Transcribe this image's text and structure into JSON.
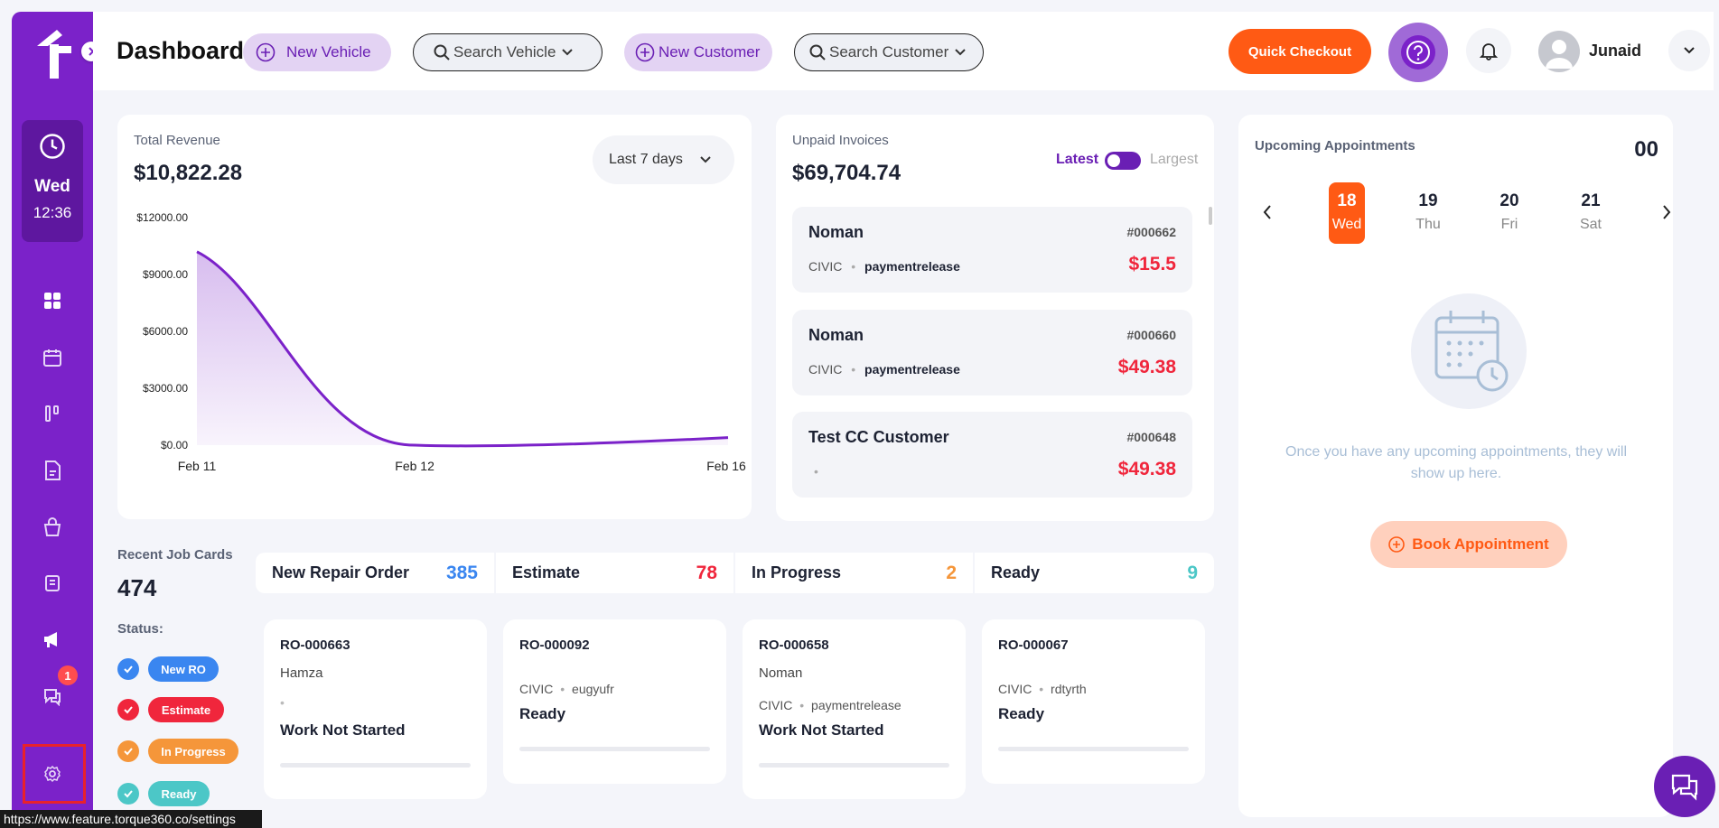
{
  "sidebar": {
    "day": "Wed",
    "time": "12:36",
    "icons": [
      "dashboard-icon",
      "calendar-icon",
      "kanban-icon",
      "document-icon",
      "shopping-bag-icon",
      "receipt-icon",
      "megaphone-icon",
      "chat-icon",
      "settings-icon"
    ],
    "messages_badge": "1"
  },
  "header": {
    "title": "Dashboard",
    "new_vehicle": "New Vehicle",
    "search_vehicle": "Search Vehicle",
    "new_customer": "New Customer",
    "search_customer": "Search Customer",
    "quick_checkout": "Quick Checkout",
    "user_name": "Junaid"
  },
  "revenue": {
    "label": "Total Revenue",
    "value": "$10,822.28",
    "range": "Last 7 days"
  },
  "chart_data": {
    "type": "area",
    "x": [
      "Feb 11",
      "Feb 12",
      "Feb 16"
    ],
    "values": [
      10200,
      0,
      400
    ],
    "yticks": [
      "$12000.00",
      "$9000.00",
      "$6000.00",
      "$3000.00",
      "$0.00"
    ],
    "ylim": [
      0,
      12000
    ],
    "color": "#7b22c9",
    "title": "",
    "xlabel": "",
    "ylabel": ""
  },
  "invoices": {
    "label": "Unpaid Invoices",
    "value": "$69,704.74",
    "toggle_left": "Latest",
    "toggle_right": "Largest",
    "items": [
      {
        "name": "Noman",
        "number": "#000662",
        "vehicle": "CIVIC",
        "note": "paymentrelease",
        "amount": "$15.5"
      },
      {
        "name": "Noman",
        "number": "#000660",
        "vehicle": "CIVIC",
        "note": "paymentrelease",
        "amount": "$49.38"
      },
      {
        "name": "Test CC Customer",
        "number": "#000648",
        "vehicle": "",
        "note": "",
        "amount": "$49.38"
      }
    ]
  },
  "jobs": {
    "label": "Recent Job Cards",
    "count": "474",
    "status_label": "Status:",
    "statuses": [
      {
        "label": "New RO",
        "color": "#3a86f0"
      },
      {
        "label": "Estimate",
        "color": "#f0263c"
      },
      {
        "label": "In Progress",
        "color": "#f5963a"
      },
      {
        "label": "Ready",
        "color": "#4cc7c7"
      }
    ],
    "stats": [
      {
        "label": "New Repair Order",
        "value": "385",
        "color": "#3a86f0"
      },
      {
        "label": "Estimate",
        "value": "78",
        "color": "#f0263c"
      },
      {
        "label": "In Progress",
        "value": "2",
        "color": "#f5963a"
      },
      {
        "label": "Ready",
        "value": "9",
        "color": "#4cc7c7"
      }
    ],
    "cards": [
      {
        "ro": "RO-000663",
        "customer": "Hamza",
        "vehicle": "",
        "note": "",
        "status": "Work Not Started"
      },
      {
        "ro": "RO-000092",
        "customer": "",
        "vehicle": "CIVIC",
        "note": "eugyufr",
        "status": "Ready"
      },
      {
        "ro": "RO-000658",
        "customer": "Noman",
        "vehicle": "CIVIC",
        "note": "paymentrelease",
        "status": "Work Not Started"
      },
      {
        "ro": "RO-000067",
        "customer": "",
        "vehicle": "CIVIC",
        "note": "rdtyrth",
        "status": "Ready"
      }
    ]
  },
  "appointments": {
    "label": "Upcoming Appointments",
    "count": "00",
    "days": [
      {
        "d": "18",
        "w": "Wed",
        "active": true
      },
      {
        "d": "19",
        "w": "Thu"
      },
      {
        "d": "20",
        "w": "Fri"
      },
      {
        "d": "21",
        "w": "Sat"
      }
    ],
    "empty_text": "Once you have any upcoming appointments, they will show up here.",
    "book": "Book Appointment"
  },
  "status_url": "https://www.feature.torque360.co/settings"
}
